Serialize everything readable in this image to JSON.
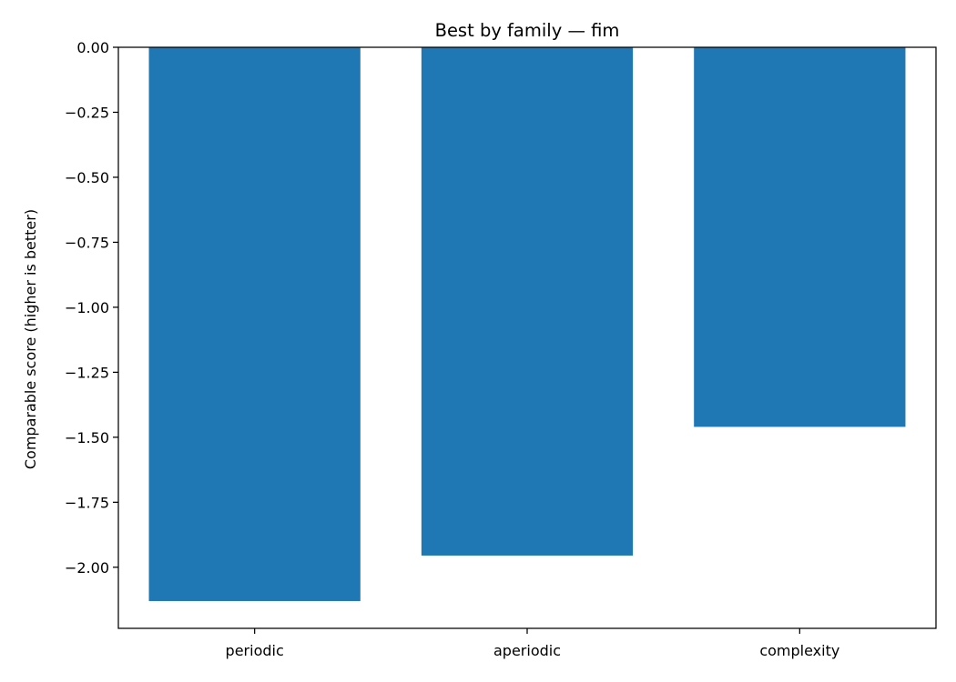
{
  "chart_data": {
    "type": "bar",
    "title": "Best by family — fim",
    "xlabel": "",
    "ylabel": "Comparable score (higher is better)",
    "categories": [
      "periodic",
      "aperiodic",
      "complexity"
    ],
    "values": [
      -2.13,
      -1.955,
      -1.46
    ],
    "ylim": [
      -2.235,
      0
    ],
    "yticks": [
      0,
      -0.25,
      -0.5,
      -0.75,
      -1,
      -1.25,
      -1.5,
      -1.75,
      -2
    ],
    "ytick_labels": [
      "0.00",
      "−0.25",
      "−0.50",
      "−0.75",
      "−1.00",
      "−1.25",
      "−1.50",
      "−1.75",
      "−2.00"
    ],
    "grid": false,
    "legend": "none",
    "bar_color": "#1f77b4"
  }
}
